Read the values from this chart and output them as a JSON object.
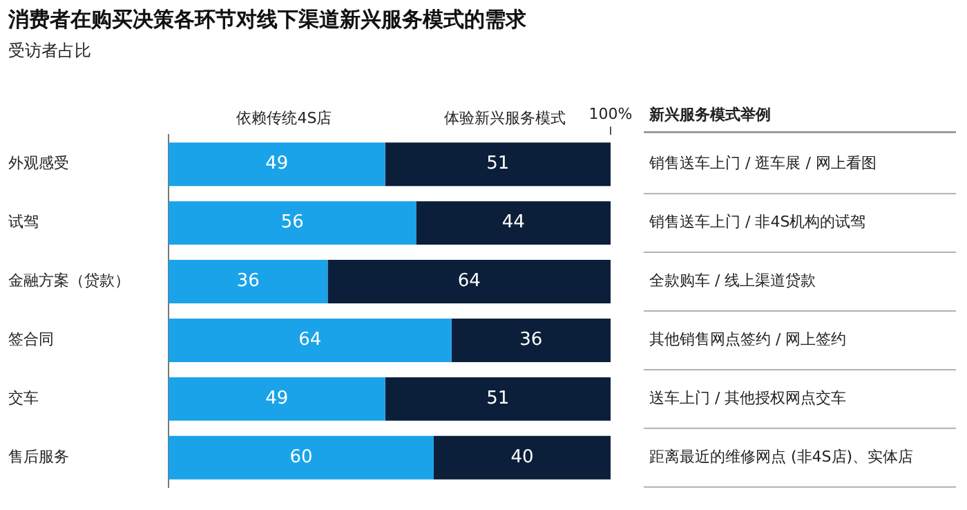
{
  "chart_data": {
    "type": "bar",
    "orientation": "horizontal",
    "stacked": true,
    "title": "消费者在购买决策各环节对线下渠道新兴服务模式的需求",
    "subtitle": "受访者占比",
    "categories": [
      "外观感受",
      "试驾",
      "金融方案（贷款）",
      "签合同",
      "交车",
      "售后服务"
    ],
    "series": [
      {
        "name": "依赖传统4S店",
        "color": "#1aa3e8",
        "values": [
          49,
          56,
          36,
          64,
          49,
          60
        ]
      },
      {
        "name": "体验新兴服务模式",
        "color": "#0b1f3a",
        "values": [
          51,
          44,
          64,
          36,
          51,
          40
        ]
      }
    ],
    "xlim": [
      0,
      100
    ],
    "xticks": [
      {
        "value": 100,
        "label": "100%"
      }
    ],
    "data_labels": true,
    "legend": "top",
    "grid": false,
    "annotations": [
      "新兴服务模式举例",
      "销售送车上门 / 逛车展 / 网上看图",
      "销售送车上门 / 非4S机构的试驾",
      "全款购车 / 线上渠道贷款",
      "其他销售网点签约 / 网上签约",
      "送车上门 / 其他授权网点交车",
      "距离最近的维修网点 (非4S店)、实体店"
    ]
  }
}
